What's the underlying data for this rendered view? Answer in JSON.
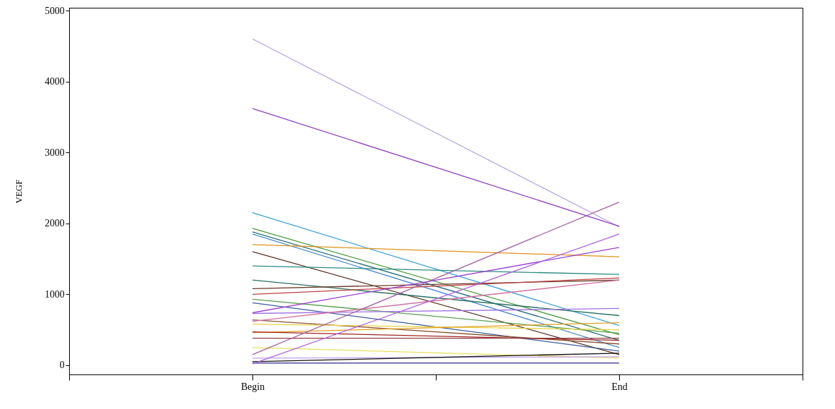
{
  "chart_data": {
    "type": "line",
    "ylabel": "VEGF",
    "categories": [
      null,
      "Begin",
      null,
      "End",
      null
    ],
    "ylim": [
      -130,
      5040
    ],
    "yticks": [
      0,
      1000,
      2000,
      3000,
      4000,
      5000
    ],
    "grid": false,
    "legend": false,
    "marker": "none",
    "line_style": "solid",
    "series": [
      {
        "color": "#b7a3e0",
        "values": [
          null,
          4600,
          null,
          1950,
          null
        ]
      },
      {
        "color": "#8e3fc0",
        "values": [
          null,
          3620,
          null,
          1960,
          null
        ]
      },
      {
        "color": "#3aa0d8",
        "values": [
          null,
          2150,
          null,
          560,
          null
        ]
      },
      {
        "color": "#4a9a3a",
        "values": [
          null,
          1930,
          null,
          430,
          null
        ]
      },
      {
        "color": "#2a6a7a",
        "values": [
          null,
          1880,
          null,
          350,
          null
        ]
      },
      {
        "color": "#4a8ad0",
        "values": [
          null,
          1850,
          null,
          250,
          null
        ]
      },
      {
        "color": "#e0901a",
        "values": [
          null,
          1700,
          null,
          1530,
          null
        ]
      },
      {
        "color": "#5a3020",
        "values": [
          null,
          1600,
          null,
          150,
          null
        ]
      },
      {
        "color": "#2a8a80",
        "values": [
          null,
          1400,
          null,
          1280,
          null
        ]
      },
      {
        "color": "#2a7060",
        "values": [
          null,
          1200,
          null,
          700,
          null
        ]
      },
      {
        "color": "#6a3a2a",
        "values": [
          null,
          1080,
          null,
          1200,
          null
        ]
      },
      {
        "color": "#c04040",
        "values": [
          null,
          1000,
          null,
          1230,
          null
        ]
      },
      {
        "color": "#5aa050",
        "values": [
          null,
          930,
          null,
          450,
          null
        ]
      },
      {
        "color": "#3a5aa0",
        "values": [
          null,
          880,
          null,
          200,
          null
        ]
      },
      {
        "color": "#9a40d0",
        "values": [
          null,
          740,
          null,
          1660,
          null
        ]
      },
      {
        "color": "#a070e0",
        "values": [
          null,
          730,
          null,
          800,
          null
        ]
      },
      {
        "color": "#8a5030",
        "values": [
          null,
          640,
          null,
          300,
          null
        ]
      },
      {
        "color": "#d070a0",
        "values": [
          null,
          620,
          null,
          1200,
          null
        ]
      },
      {
        "color": "#e8d040",
        "values": [
          null,
          580,
          null,
          500,
          null
        ]
      },
      {
        "color": "#e0a020",
        "values": [
          null,
          460,
          null,
          600,
          null
        ]
      },
      {
        "color": "#a02020",
        "values": [
          null,
          470,
          null,
          350,
          null
        ]
      },
      {
        "color": "#904040",
        "values": [
          null,
          380,
          null,
          380,
          null
        ]
      },
      {
        "color": "#e8e060",
        "values": [
          null,
          250,
          null,
          100,
          null
        ]
      },
      {
        "color": "#a060a0",
        "values": [
          null,
          150,
          null,
          2300,
          null
        ]
      },
      {
        "color": "#c0a0f0",
        "values": [
          null,
          100,
          null,
          120,
          null
        ]
      },
      {
        "color": "#101010",
        "values": [
          null,
          50,
          null,
          170,
          null
        ]
      },
      {
        "color": "#2a2a80",
        "values": [
          null,
          30,
          null,
          30,
          null
        ]
      },
      {
        "color": "#b060e0",
        "values": [
          null,
          20,
          null,
          1850,
          null
        ]
      }
    ]
  }
}
